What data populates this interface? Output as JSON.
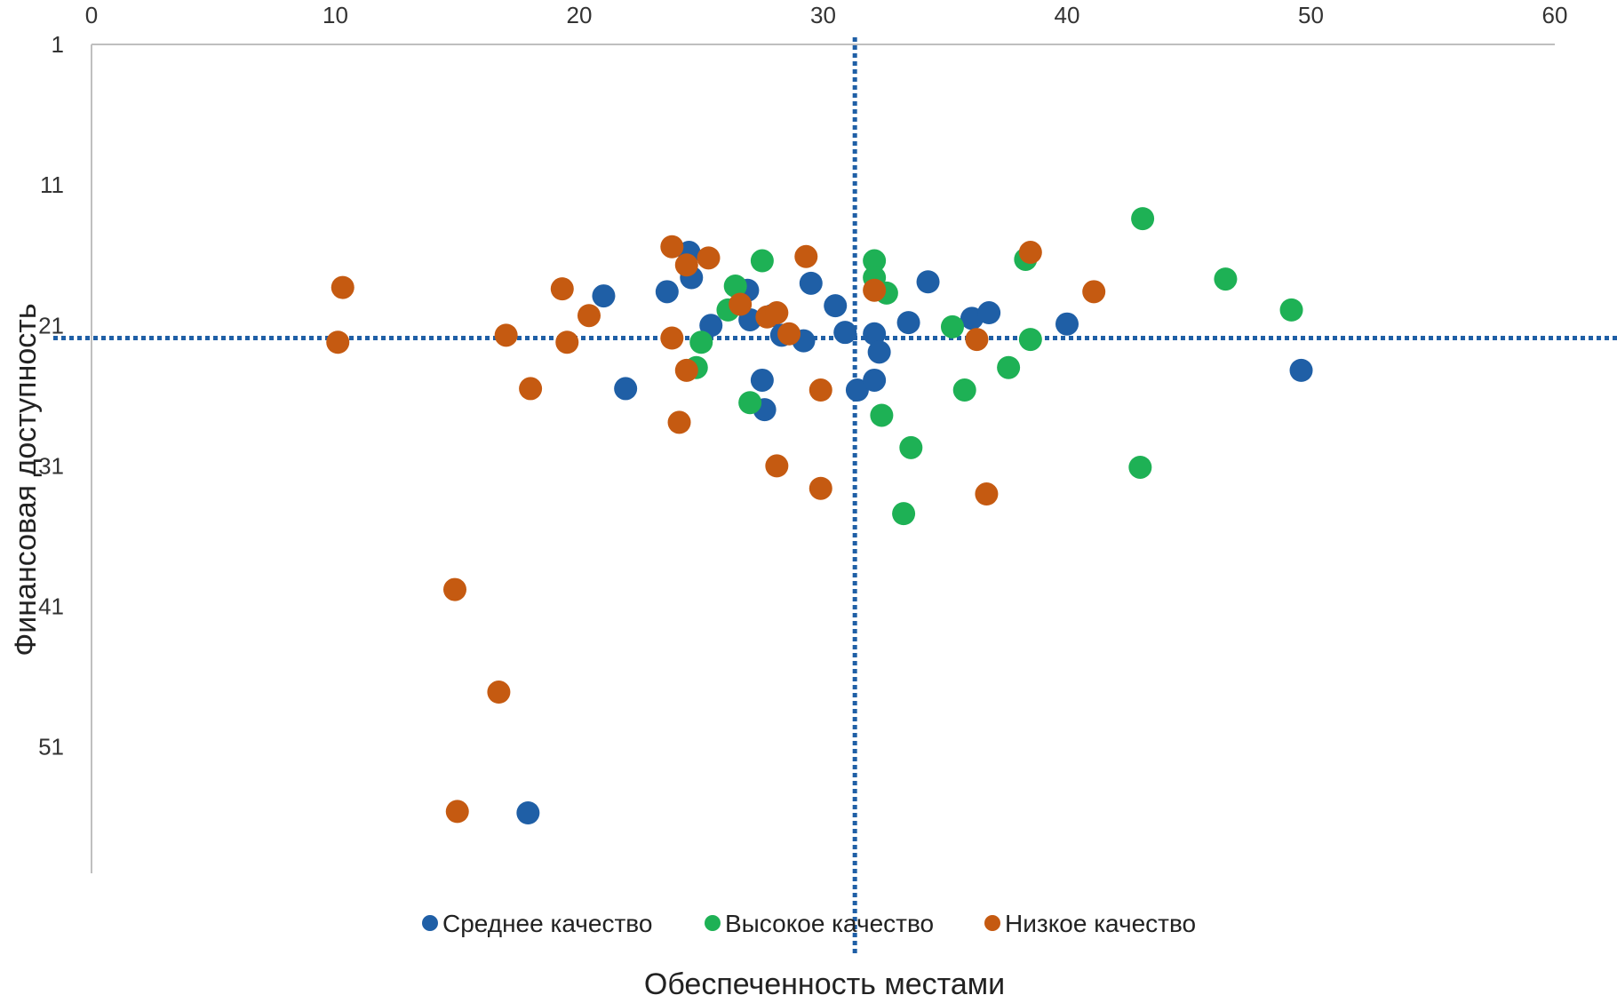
{
  "chart_data": {
    "type": "scatter",
    "xlabel": "Обеспеченность местами",
    "ylabel": "Финансовая доступность",
    "x_axis": {
      "min": 0,
      "max": 60,
      "ticks": [
        0,
        10,
        20,
        30,
        40,
        50,
        60
      ],
      "position": "top"
    },
    "y_axis": {
      "min": 1,
      "max": 60,
      "reversed": true,
      "ticks": [
        1,
        11,
        21,
        31,
        41,
        51
      ]
    },
    "grid": false,
    "legend_position": "bottom",
    "reference_lines": {
      "x": 31.3,
      "y": 21.9
    },
    "reference_line_color": "#1f5fa6",
    "series": [
      {
        "name": "Среднее качество",
        "color": "#1f5fa6",
        "points": [
          [
            24.5,
            15.8
          ],
          [
            24.6,
            17.6
          ],
          [
            23.6,
            18.6
          ],
          [
            21.0,
            18.9
          ],
          [
            25.4,
            21.0
          ],
          [
            26.9,
            18.5
          ],
          [
            27.0,
            20.6
          ],
          [
            27.9,
            20.3
          ],
          [
            28.3,
            21.7
          ],
          [
            29.2,
            22.1
          ],
          [
            29.5,
            18.0
          ],
          [
            30.5,
            19.6
          ],
          [
            30.9,
            21.5
          ],
          [
            32.1,
            21.6
          ],
          [
            32.3,
            22.9
          ],
          [
            33.5,
            20.8
          ],
          [
            34.3,
            17.9
          ],
          [
            36.1,
            20.5
          ],
          [
            36.8,
            20.1
          ],
          [
            40.0,
            20.9
          ],
          [
            49.6,
            24.2
          ],
          [
            21.9,
            25.5
          ],
          [
            27.5,
            24.9
          ],
          [
            27.6,
            27.0
          ],
          [
            31.4,
            25.6
          ],
          [
            32.1,
            24.9
          ],
          [
            17.9,
            55.7
          ]
        ]
      },
      {
        "name": "Высокое качество",
        "color": "#1eb155",
        "points": [
          [
            43.1,
            13.4
          ],
          [
            27.5,
            16.4
          ],
          [
            32.1,
            16.4
          ],
          [
            32.1,
            17.6
          ],
          [
            32.6,
            18.7
          ],
          [
            26.4,
            18.2
          ],
          [
            26.1,
            19.9
          ],
          [
            38.3,
            16.3
          ],
          [
            46.5,
            17.7
          ],
          [
            49.2,
            19.9
          ],
          [
            35.3,
            21.1
          ],
          [
            38.5,
            22.0
          ],
          [
            25.0,
            22.2
          ],
          [
            24.8,
            24.0
          ],
          [
            37.6,
            24.0
          ],
          [
            35.8,
            25.6
          ],
          [
            27.0,
            26.5
          ],
          [
            32.4,
            27.4
          ],
          [
            33.6,
            29.7
          ],
          [
            43.0,
            31.1
          ],
          [
            33.3,
            34.4
          ]
        ]
      },
      {
        "name": "Низкое качество",
        "color": "#c55a11",
        "points": [
          [
            23.8,
            15.4
          ],
          [
            24.4,
            16.7
          ],
          [
            25.3,
            16.2
          ],
          [
            29.3,
            16.1
          ],
          [
            38.5,
            15.8
          ],
          [
            10.3,
            18.3
          ],
          [
            19.3,
            18.4
          ],
          [
            32.1,
            18.5
          ],
          [
            41.1,
            18.6
          ],
          [
            20.4,
            20.3
          ],
          [
            26.6,
            19.5
          ],
          [
            27.7,
            20.4
          ],
          [
            28.1,
            20.1
          ],
          [
            28.6,
            21.6
          ],
          [
            17.0,
            21.7
          ],
          [
            10.1,
            22.2
          ],
          [
            19.5,
            22.2
          ],
          [
            23.8,
            21.9
          ],
          [
            36.3,
            22.0
          ],
          [
            24.4,
            24.2
          ],
          [
            18.0,
            25.5
          ],
          [
            29.9,
            25.6
          ],
          [
            24.1,
            27.9
          ],
          [
            28.1,
            31.0
          ],
          [
            29.9,
            32.6
          ],
          [
            36.7,
            33.0
          ],
          [
            14.9,
            39.8
          ],
          [
            16.7,
            47.1
          ],
          [
            15.0,
            55.6
          ]
        ]
      }
    ]
  }
}
